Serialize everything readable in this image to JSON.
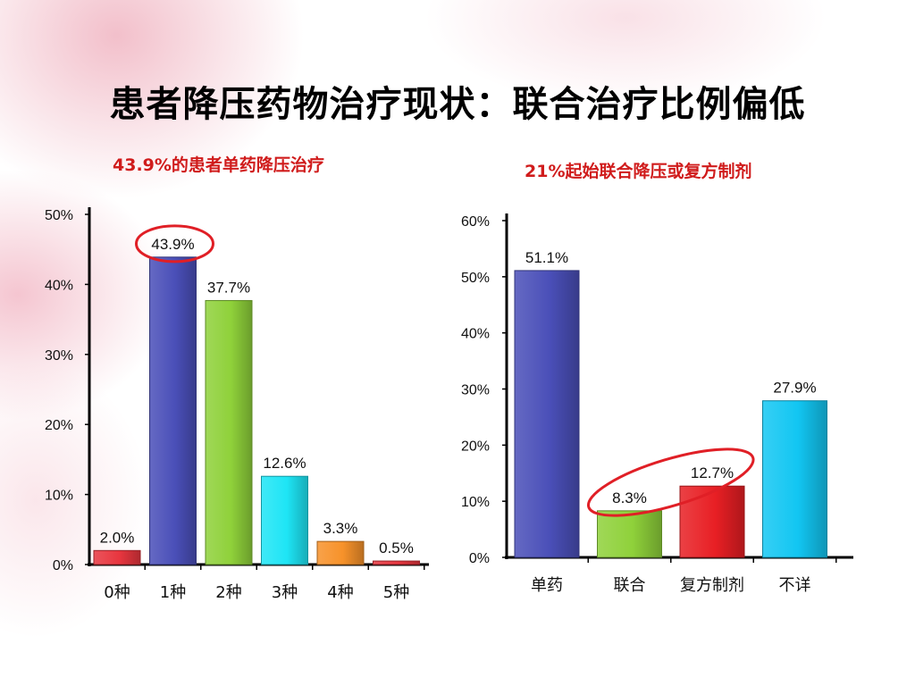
{
  "title": "患者降压药物治疗现状：联合治疗比例偏低",
  "chart_data": [
    {
      "type": "bar",
      "subtitle": "43.9%的患者单药降压治疗",
      "categories": [
        "0种",
        "1种",
        "2种",
        "3种",
        "4种",
        "5种"
      ],
      "values": [
        2.0,
        43.9,
        37.7,
        12.6,
        3.3,
        0.5
      ],
      "value_labels": [
        "2.0%",
        "43.9%",
        "37.7%",
        "12.6%",
        "3.3%",
        "0.5%"
      ],
      "colors": [
        "#e8363f",
        "#4a4fb8",
        "#8fd13a",
        "#1ee5f5",
        "#f7922a",
        "#e8363f"
      ],
      "yticks": [
        "0%",
        "10%",
        "20%",
        "30%",
        "40%",
        "50%"
      ],
      "ylim": [
        0,
        50
      ],
      "highlight": [
        "1种"
      ],
      "grid": false
    },
    {
      "type": "bar",
      "subtitle": "21%起始联合降压或复方制剂",
      "categories": [
        "单药",
        "联合",
        "复方制剂",
        "不详"
      ],
      "values": [
        51.1,
        8.3,
        12.7,
        27.9
      ],
      "value_labels": [
        "51.1%",
        "8.3%",
        "12.7%",
        "27.9%"
      ],
      "colors": [
        "#4a4fb8",
        "#8fd13a",
        "#e81f24",
        "#12c6f2"
      ],
      "yticks": [
        "0%",
        "10%",
        "20%",
        "30%",
        "40%",
        "50%",
        "60%"
      ],
      "ylim": [
        0,
        60
      ],
      "highlight": [
        "联合",
        "复方制剂"
      ],
      "grid": false
    }
  ]
}
